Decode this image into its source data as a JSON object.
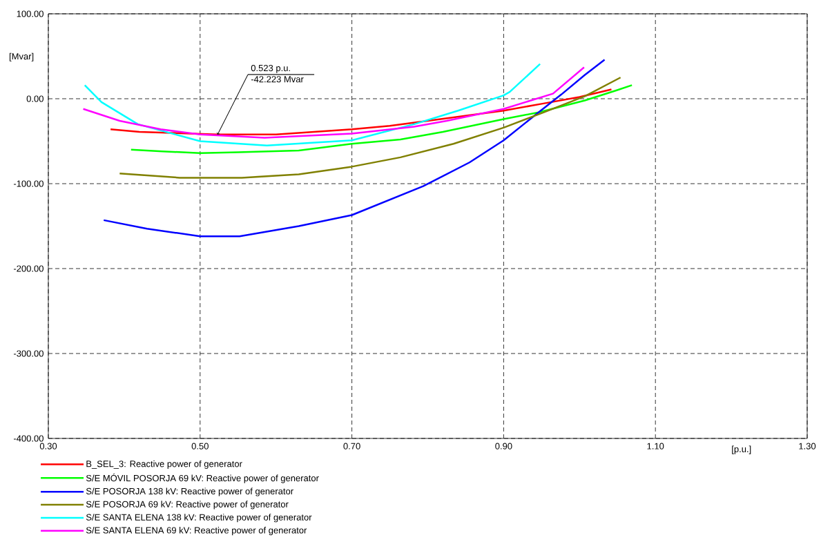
{
  "chart_data": {
    "type": "line",
    "xlabel": "[p.u.]",
    "ylabel": "[Mvar]",
    "xlim": [
      0.3,
      1.3
    ],
    "ylim": [
      -400,
      100
    ],
    "xticks": [
      {
        "value": 0.3,
        "label": "0.30"
      },
      {
        "value": 0.5,
        "label": "0.50"
      },
      {
        "value": 0.7,
        "label": "0.70"
      },
      {
        "value": 0.9,
        "label": "0.90"
      },
      {
        "value": 1.1,
        "label": "1.10"
      },
      {
        "value": 1.3,
        "label": "1.30"
      }
    ],
    "yticks": [
      {
        "value": -400,
        "label": "-400.00"
      },
      {
        "value": -300,
        "label": "-300.00"
      },
      {
        "value": -200,
        "label": "-200.00"
      },
      {
        "value": -100,
        "label": "-100.00"
      },
      {
        "value": 0,
        "label": "0.00"
      },
      {
        "value": 100,
        "label": "100.00"
      }
    ],
    "grid": true,
    "legend": "bottom",
    "line_style": "solid",
    "annotations": [
      {
        "text": "0.523 p.u.",
        "x": 0.523,
        "y": -42.223
      },
      {
        "text": "-42.223 Mvar",
        "x": 0.523,
        "y": -42.223
      }
    ],
    "series": [
      {
        "name": "B_SEL_3: Reactive power of generator",
        "color": "#ff0000",
        "x": [
          0.382,
          0.42,
          0.523,
          0.6,
          0.65,
          0.7,
          0.75,
          0.8,
          0.85,
          0.9,
          0.95,
          1.0,
          1.042
        ],
        "values": [
          -36,
          -39,
          -42,
          -42,
          -39,
          -36,
          -32,
          -26,
          -20,
          -14,
          -6,
          2,
          11
        ]
      },
      {
        "name": "S/E MÓVIL POSORJA 69 kV: Reactive power of generator",
        "color": "#00ff00",
        "x": [
          0.409,
          0.45,
          0.5,
          0.55,
          0.63,
          0.7,
          0.764,
          0.82,
          0.9,
          0.946,
          1.007,
          1.049,
          1.069
        ],
        "values": [
          -60,
          -62,
          -64,
          -63,
          -61,
          -53,
          -48,
          -39,
          -24,
          -16,
          -2,
          10,
          16
        ]
      },
      {
        "name": "S/E POSORJA 138 kV: Reactive power of generator",
        "color": "#0000ff",
        "x": [
          0.373,
          0.43,
          0.5,
          0.552,
          0.63,
          0.7,
          0.794,
          0.855,
          0.9,
          0.946,
          0.976,
          1.007,
          1.033
        ],
        "values": [
          -143,
          -153,
          -162,
          -162,
          -150,
          -137,
          -103,
          -75,
          -49,
          -16,
          5,
          28,
          46
        ]
      },
      {
        "name": "S/E POSORJA 69 kV: Reactive power of generator",
        "color": "#808000",
        "x": [
          0.394,
          0.473,
          0.555,
          0.63,
          0.7,
          0.764,
          0.834,
          0.9,
          0.953,
          1.007,
          1.054
        ],
        "values": [
          -88,
          -93,
          -93,
          -89,
          -80,
          -69,
          -53,
          -34,
          -16,
          3,
          25
        ]
      },
      {
        "name": "S/E SANTA ELENA 138 kV: Reactive power of generator",
        "color": "#00ffff",
        "x": [
          0.348,
          0.37,
          0.418,
          0.5,
          0.588,
          0.7,
          0.782,
          0.84,
          0.9,
          0.908,
          0.948
        ],
        "values": [
          16,
          -4,
          -30,
          -50,
          -55,
          -49,
          -30,
          -14,
          4,
          8,
          41
        ]
      },
      {
        "name": "S/E SANTA ELENA 69 kV: Reactive power of generator",
        "color": "#ff00ff",
        "x": [
          0.346,
          0.394,
          0.448,
          0.5,
          0.585,
          0.7,
          0.782,
          0.825,
          0.9,
          0.965,
          1.006
        ],
        "values": [
          -12,
          -26,
          -36,
          -42,
          -46,
          -41,
          -33,
          -26,
          -12,
          6,
          37
        ]
      }
    ]
  }
}
